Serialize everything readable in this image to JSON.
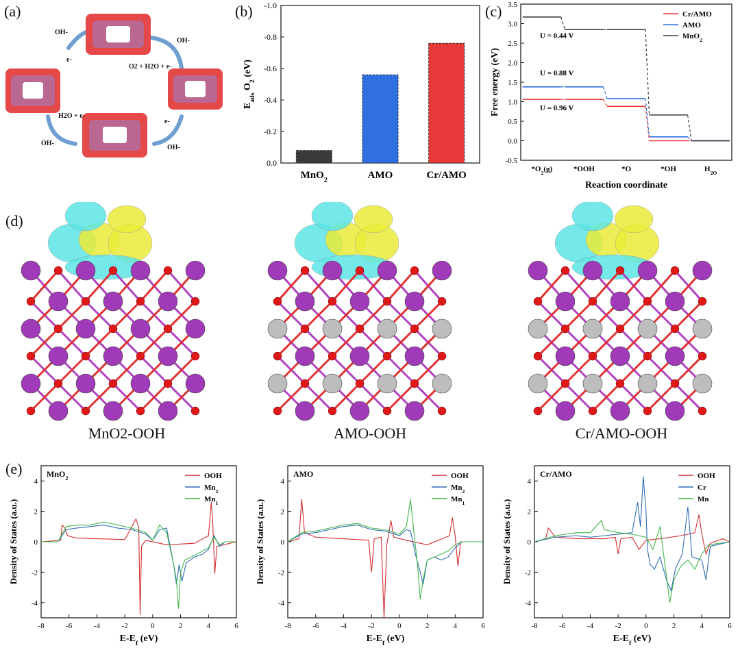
{
  "figure": {
    "panel_labels": [
      "(a)",
      "(b)",
      "(c)",
      "(d)",
      "(e)"
    ],
    "panel_a": {
      "labels": [
        "OH-",
        "OH-",
        "O2 + H2O + e-",
        "e-",
        "e-",
        "H2O + e-",
        "OH-",
        "OH-"
      ]
    },
    "panel_d": {
      "captions": [
        "MnO2-OOH",
        "AMO-OOH",
        "Cr/AMO-OOH"
      ]
    },
    "colors": {
      "mno2": "#3a3a3a",
      "amo": "#2f6fe0",
      "cramo": "#e8393a",
      "ooh": "#d62c2c",
      "mn2": "#2f6db5",
      "mn1": "#3fb54a",
      "atom_mn": "#a03ab8",
      "atom_o": "#e01818",
      "atom_grey": "#bdbdbd",
      "iso_yellow": "#eaec3a",
      "iso_cyan": "#5de6e6"
    }
  },
  "chart_data": [
    {
      "type": "bar",
      "id": "b",
      "categories": [
        "MnO2",
        "AMO",
        "Cr/AMO"
      ],
      "values": [
        -0.08,
        -0.56,
        -0.76
      ],
      "ylabel": "E_ads O_2 (eV)",
      "ylim": [
        0,
        -1.0
      ],
      "yticks": [
        "0.0",
        "-0.2",
        "-0.4",
        "-0.6",
        "-0.8",
        "-1.0"
      ],
      "colors": [
        "#3a3a3a",
        "#2f6fe0",
        "#e8393a"
      ]
    },
    {
      "type": "line",
      "id": "c",
      "categories": [
        "*O2(g)",
        "*OOH",
        "*O",
        "*OH",
        "H2O"
      ],
      "xlabel": "Reaction coordinate",
      "ylabel": "Free energy (eV)",
      "ylim": [
        -0.5,
        3.5
      ],
      "yticks": [
        "-0.5",
        "0.0",
        "0.5",
        "1.0",
        "1.5",
        "2.0",
        "2.5",
        "3.0",
        "3.5"
      ],
      "series": [
        {
          "name": "Cr/AMO",
          "values": [
            1.06,
            1.06,
            0.88,
            0.0,
            0.0
          ],
          "color": "#e8393a"
        },
        {
          "name": "AMO",
          "values": [
            1.38,
            1.38,
            1.08,
            0.1,
            0.0
          ],
          "color": "#2f6fe0"
        },
        {
          "name": "MnO2",
          "values": [
            3.17,
            2.85,
            2.85,
            0.66,
            0.0
          ],
          "color": "#3a3a3a"
        }
      ],
      "annotations": [
        "U = 0.44 V",
        "U = 0.88 V",
        "U = 0.96 V"
      ],
      "legend_placement": "top-right"
    },
    {
      "type": "line",
      "id": "e1",
      "title": "MnO2",
      "xlabel": "E-E_f (eV)",
      "ylabel": "Density of States (a.u.)",
      "xlim": [
        -8,
        6
      ],
      "ylim": [
        -5,
        5
      ],
      "xticks": [
        "-8",
        "-6",
        "-4",
        "-2",
        "0",
        "2",
        "4",
        "6"
      ],
      "yticks": [
        "-4",
        "-2",
        "0",
        "2",
        "4"
      ],
      "series": [
        {
          "name": "OOH",
          "color": "#d62c2c",
          "x": [
            -8,
            -6.6,
            -6.5,
            -6.3,
            -6.1,
            -5.5,
            -4,
            -2,
            -1.2,
            -1.0,
            -0.9,
            -0.8,
            -0.5,
            1,
            3,
            4.0,
            4.2,
            4.3,
            4.45,
            4.6,
            6
          ],
          "values": [
            0,
            0.1,
            1.1,
            0.9,
            0.4,
            0.25,
            0.2,
            0.15,
            1.5,
            1.0,
            -4.8,
            -0.3,
            0.1,
            -0.2,
            -0.1,
            0.4,
            2.6,
            1.4,
            -2.1,
            -0.3,
            0
          ]
        },
        {
          "name": "Mn2",
          "color": "#2f6db5",
          "x": [
            -8,
            -6.8,
            -6.2,
            -5.5,
            -4.5,
            -3.5,
            -2.5,
            -1.5,
            -0.5,
            0,
            0.5,
            1.0,
            1.5,
            1.7,
            1.9,
            2.1,
            2.4,
            3,
            3.6,
            4.0,
            4.4,
            4.8,
            5.2,
            6
          ],
          "values": [
            0,
            0,
            0.8,
            0.9,
            1.0,
            1.1,
            0.9,
            0.8,
            0.5,
            0.1,
            0.8,
            0.9,
            -1.5,
            -2.8,
            -1.5,
            -2.6,
            -1.4,
            -1.0,
            -0.8,
            -0.5,
            0.4,
            -0.3,
            0,
            0
          ]
        },
        {
          "name": "Mn1",
          "color": "#3fb54a",
          "x": [
            -8,
            -6.8,
            -6.2,
            -5.5,
            -4.5,
            -3.5,
            -2.5,
            -1.5,
            -0.5,
            0,
            0.5,
            1.0,
            1.5,
            1.7,
            1.85,
            2.0,
            2.3,
            3,
            3.6,
            4.0,
            4.4,
            4.8,
            5.2,
            6
          ],
          "values": [
            0,
            0,
            1.0,
            1.1,
            1.1,
            1.3,
            1.1,
            0.9,
            0.6,
            0.1,
            1.1,
            0.6,
            -1.5,
            -2.5,
            -4.4,
            -2.0,
            -1.2,
            -0.9,
            -0.6,
            -0.4,
            0.3,
            -0.2,
            0,
            0
          ]
        }
      ]
    },
    {
      "type": "line",
      "id": "e2",
      "title": "AMO",
      "xlabel": "E-E_f (eV)",
      "ylabel": "Density of States (a.u.)",
      "xlim": [
        -8,
        6
      ],
      "ylim": [
        -5,
        5
      ],
      "xticks": [
        "-8",
        "-6",
        "-4",
        "-2",
        "0",
        "2",
        "4",
        "6"
      ],
      "yticks": [
        "-4",
        "-2",
        "0",
        "2",
        "4"
      ],
      "series": [
        {
          "name": "OOH",
          "color": "#d62c2c",
          "x": [
            -8,
            -7.2,
            -7.0,
            -6.8,
            -6,
            -4,
            -2.2,
            -2.0,
            -1.8,
            -1.3,
            -1.1,
            -0.9,
            -0.6,
            -0.4,
            0.5,
            2,
            3.6,
            3.8,
            4.0,
            4.2,
            4.4,
            6
          ],
          "values": [
            0,
            0.2,
            2.8,
            0.6,
            0.3,
            0.2,
            0.1,
            -2.0,
            0.2,
            0.3,
            -5.0,
            -0.2,
            1.4,
            0.3,
            0.1,
            -0.2,
            0.4,
            1.6,
            0.4,
            -1.6,
            0.0,
            0
          ]
        },
        {
          "name": "Mn2",
          "color": "#2f6db5",
          "x": [
            -8,
            -7,
            -6,
            -5,
            -4,
            -3,
            -2,
            -1,
            0,
            0.5,
            0.8,
            1.2,
            1.5,
            1.7,
            2,
            2.5,
            3,
            3.5,
            4,
            4.5,
            6
          ],
          "values": [
            0,
            0.5,
            0.6,
            0.8,
            1.0,
            1.1,
            0.8,
            0.7,
            0.4,
            0.8,
            0.7,
            -1.0,
            -2.0,
            -2.8,
            -1.2,
            -1.0,
            -1.2,
            -1.0,
            -0.4,
            0,
            0
          ]
        },
        {
          "name": "Mn1",
          "color": "#3fb54a",
          "x": [
            -8,
            -7,
            -6,
            -5,
            -4,
            -3,
            -2,
            -1,
            0,
            0.5,
            0.8,
            1.0,
            1.3,
            1.5,
            1.7,
            2,
            2.5,
            3,
            3.5,
            4,
            4.5,
            6
          ],
          "values": [
            0,
            0.6,
            0.7,
            0.9,
            1.1,
            1.2,
            0.9,
            0.8,
            0.5,
            1.0,
            2.8,
            1.0,
            -1.5,
            -3.8,
            -2.5,
            -1.2,
            -1.0,
            -0.8,
            -0.6,
            -0.2,
            0,
            0
          ]
        }
      ]
    },
    {
      "type": "line",
      "id": "e3",
      "title": "Cr/AMO",
      "xlabel": "E-E_f (eV)",
      "ylabel": "Density of States (a.u.)",
      "xlim": [
        -8,
        6
      ],
      "ylim": [
        -5,
        5
      ],
      "xticks": [
        "-8",
        "-6",
        "-4",
        "-2",
        "0",
        "2",
        "4",
        "6"
      ],
      "yticks": [
        "-4",
        "-2",
        "0",
        "2",
        "4"
      ],
      "series": [
        {
          "name": "OOH",
          "color": "#d62c2c",
          "x": [
            -8,
            -7.2,
            -7.0,
            -6.5,
            -5,
            -3,
            -2.2,
            -2.0,
            -1.8,
            -1,
            -0.5,
            0,
            1,
            2.5,
            3.5,
            3.8,
            4.0,
            4.3,
            4.6,
            5.5,
            6
          ],
          "values": [
            0,
            0.2,
            0.9,
            0.3,
            0.2,
            0.2,
            0.3,
            -0.8,
            0.2,
            0.3,
            -0.5,
            0.1,
            0.2,
            0.4,
            0.6,
            1.8,
            0.5,
            -0.8,
            -0.1,
            0.2,
            0
          ]
        },
        {
          "name": "Cr",
          "color": "#2f6db5",
          "x": [
            -8,
            -6.5,
            -5,
            -4,
            -3,
            -2,
            -1,
            -0.6,
            -0.4,
            -0.2,
            0,
            0.1,
            0.3,
            0.6,
            1,
            1.5,
            1.8,
            2.1,
            2.6,
            3.0,
            3.3,
            4.0,
            4.3,
            4.6,
            6
          ],
          "values": [
            0,
            0.3,
            0.4,
            0.3,
            0.4,
            0.5,
            0.6,
            2.6,
            1.0,
            4.3,
            2.0,
            -0.5,
            -1.5,
            -1.8,
            -1.0,
            -2.6,
            -3.2,
            -1.8,
            -0.8,
            2.3,
            -1.0,
            -1.2,
            -2.5,
            -0.3,
            0
          ]
        },
        {
          "name": "Mn",
          "color": "#3fb54a",
          "x": [
            -8,
            -6.5,
            -5,
            -4,
            -3.2,
            -3,
            -2,
            -1,
            0,
            0.5,
            1,
            1.5,
            1.7,
            2,
            2.5,
            3,
            3.5,
            4,
            4.5,
            6
          ],
          "values": [
            0,
            0.4,
            0.6,
            0.6,
            1.4,
            0.8,
            0.6,
            0.5,
            0.3,
            -0.5,
            1.0,
            -2.5,
            -4.0,
            -2.5,
            -1.6,
            -1.2,
            -1.8,
            -0.8,
            -0.2,
            0
          ]
        }
      ]
    }
  ]
}
